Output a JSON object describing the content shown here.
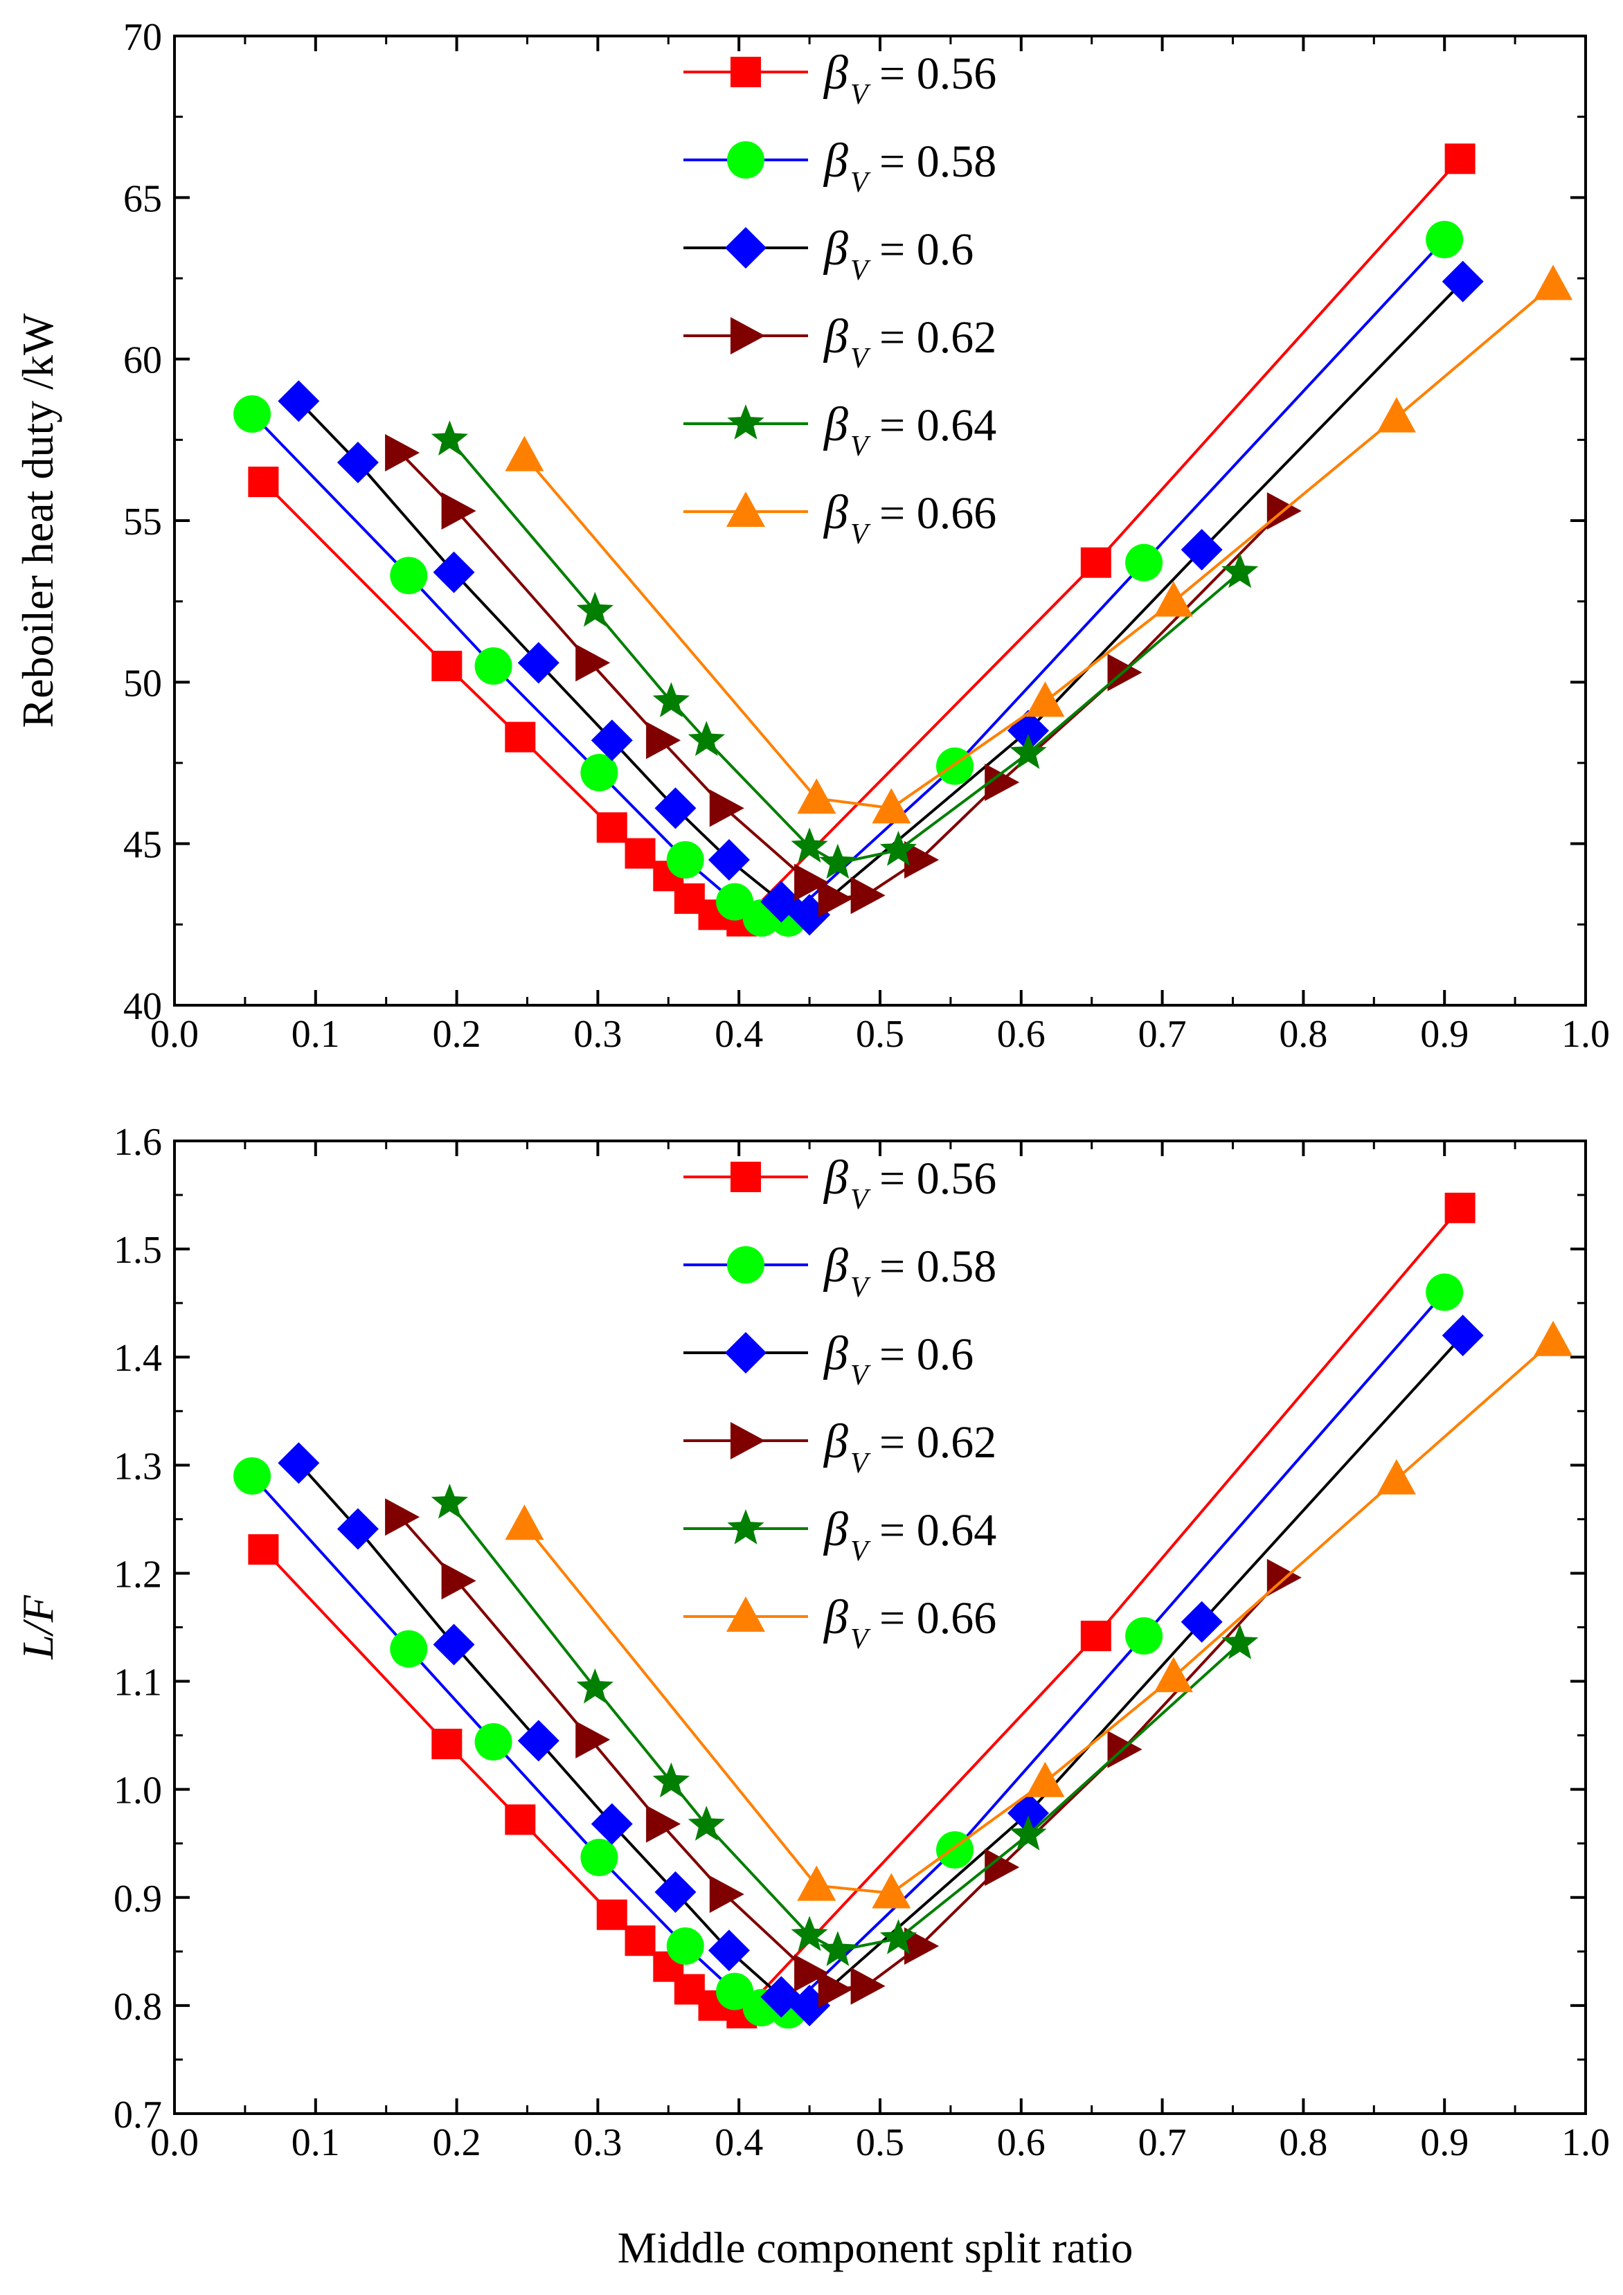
{
  "figure_xlabel": "Middle component split ratio",
  "series_style": [
    {
      "color": "#ff0000",
      "marker": "square"
    },
    {
      "color": "#0000ff",
      "marker": "circle",
      "marker_color": "#00ff00"
    },
    {
      "color": "#000000",
      "marker": "diamond",
      "marker_color": "#0000ff"
    },
    {
      "color": "#800000",
      "marker": "triangle-right"
    },
    {
      "color": "#007f00",
      "marker": "star"
    },
    {
      "color": "#ff8000",
      "marker": "triangle-up"
    }
  ],
  "legend": {
    "beta_symbol": "β",
    "subscript": "V",
    "entries": [
      "= 0.56",
      "= 0.58",
      "= 0.6",
      "= 0.62",
      "= 0.64",
      "= 0.66"
    ]
  },
  "chart_data": [
    {
      "type": "line",
      "title": "",
      "xlabel": "",
      "ylabel": "Reboiler heat duty /kW",
      "xlim": [
        0.0,
        1.0
      ],
      "ylim": [
        40,
        70
      ],
      "xticks": [
        "0.0",
        "0.1",
        "0.2",
        "0.3",
        "0.4",
        "0.5",
        "0.6",
        "0.7",
        "0.8",
        "0.9",
        "1.0"
      ],
      "yticks": [
        "40",
        "45",
        "50",
        "55",
        "60",
        "65",
        "70"
      ],
      "legend_position": "top-center",
      "series": [
        {
          "name": "βV = 0.56",
          "x": [
            0.063,
            0.193,
            0.245,
            0.31,
            0.33,
            0.35,
            0.365,
            0.382,
            0.402,
            0.653,
            0.911
          ],
          "y": [
            56.2,
            50.5,
            48.3,
            45.5,
            44.7,
            44.0,
            43.3,
            42.8,
            42.6,
            53.7,
            66.2
          ]
        },
        {
          "name": "βV = 0.58",
          "x": [
            0.055,
            0.166,
            0.226,
            0.301,
            0.362,
            0.397,
            0.416,
            0.435,
            0.553,
            0.687,
            0.9
          ],
          "y": [
            58.3,
            53.3,
            50.5,
            47.2,
            44.5,
            43.2,
            42.7,
            42.7,
            47.4,
            53.7,
            63.7
          ]
        },
        {
          "name": "βV = 0.6",
          "x": [
            0.088,
            0.13,
            0.198,
            0.258,
            0.31,
            0.355,
            0.393,
            0.43,
            0.45,
            0.605,
            0.728,
            0.913
          ],
          "y": [
            58.7,
            56.8,
            53.4,
            50.6,
            48.2,
            46.1,
            44.5,
            43.2,
            42.8,
            48.5,
            54.1,
            62.4
          ]
        },
        {
          "name": "βV = 0.62",
          "x": [
            0.16,
            0.2,
            0.295,
            0.345,
            0.39,
            0.45,
            0.467,
            0.49,
            0.528,
            0.585,
            0.672,
            0.785
          ],
          "y": [
            57.1,
            55.3,
            50.6,
            48.2,
            46.1,
            43.8,
            43.3,
            43.4,
            44.5,
            46.9,
            50.3,
            55.3
          ]
        },
        {
          "name": "βV = 0.64",
          "x": [
            0.195,
            0.298,
            0.352,
            0.377,
            0.45,
            0.47,
            0.513,
            0.605,
            0.755
          ],
          "y": [
            57.5,
            52.2,
            49.4,
            48.2,
            44.9,
            44.4,
            44.8,
            47.8,
            53.4
          ]
        },
        {
          "name": "βV = 0.66",
          "x": [
            0.248,
            0.455,
            0.508,
            0.617,
            0.708,
            0.866,
            0.977
          ],
          "y": [
            57.0,
            46.4,
            46.1,
            49.4,
            52.5,
            58.2,
            62.3
          ]
        }
      ]
    },
    {
      "type": "line",
      "title": "",
      "xlabel": "Middle component split ratio",
      "ylabel": "L/F",
      "xlim": [
        0.0,
        1.0
      ],
      "ylim": [
        0.7,
        1.6
      ],
      "xticks": [
        "0.0",
        "0.1",
        "0.2",
        "0.3",
        "0.4",
        "0.5",
        "0.6",
        "0.7",
        "0.8",
        "0.9",
        "1.0"
      ],
      "yticks": [
        "0.7",
        "0.8",
        "0.9",
        "1.0",
        "1.1",
        "1.2",
        "1.3",
        "1.4",
        "1.5",
        "1.6"
      ],
      "legend_position": "top-center",
      "series": [
        {
          "name": "βV = 0.56",
          "x": [
            0.063,
            0.193,
            0.245,
            0.31,
            0.33,
            0.35,
            0.365,
            0.382,
            0.402,
            0.653,
            0.911
          ],
          "y": [
            1.222,
            1.042,
            0.972,
            0.884,
            0.86,
            0.836,
            0.815,
            0.8,
            0.793,
            1.142,
            1.538
          ]
        },
        {
          "name": "βV = 0.58",
          "x": [
            0.055,
            0.166,
            0.226,
            0.301,
            0.362,
            0.397,
            0.416,
            0.435,
            0.553,
            0.687,
            0.9
          ],
          "y": [
            1.29,
            1.13,
            1.044,
            0.937,
            0.855,
            0.813,
            0.798,
            0.796,
            0.944,
            1.142,
            1.46
          ]
        },
        {
          "name": "βV = 0.6",
          "x": [
            0.088,
            0.13,
            0.198,
            0.258,
            0.31,
            0.355,
            0.393,
            0.43,
            0.45,
            0.605,
            0.728,
            0.913
          ],
          "y": [
            1.302,
            1.241,
            1.134,
            1.045,
            0.968,
            0.905,
            0.851,
            0.808,
            0.8,
            0.978,
            1.155,
            1.42
          ]
        },
        {
          "name": "βV = 0.62",
          "x": [
            0.16,
            0.2,
            0.295,
            0.345,
            0.39,
            0.45,
            0.467,
            0.49,
            0.528,
            0.585,
            0.672,
            0.785
          ],
          "y": [
            1.252,
            1.193,
            1.046,
            0.968,
            0.903,
            0.83,
            0.815,
            0.818,
            0.855,
            0.928,
            1.037,
            1.196
          ]
        },
        {
          "name": "βV = 0.64",
          "x": [
            0.195,
            0.298,
            0.352,
            0.377,
            0.45,
            0.47,
            0.513,
            0.605,
            0.755
          ],
          "y": [
            1.265,
            1.094,
            1.007,
            0.967,
            0.865,
            0.851,
            0.862,
            0.958,
            1.135
          ]
        },
        {
          "name": "βV = 0.66",
          "x": [
            0.248,
            0.455,
            0.508,
            0.617,
            0.708,
            0.866,
            0.977
          ],
          "y": [
            1.245,
            0.911,
            0.904,
            1.007,
            1.104,
            1.287,
            1.415
          ]
        }
      ]
    }
  ]
}
